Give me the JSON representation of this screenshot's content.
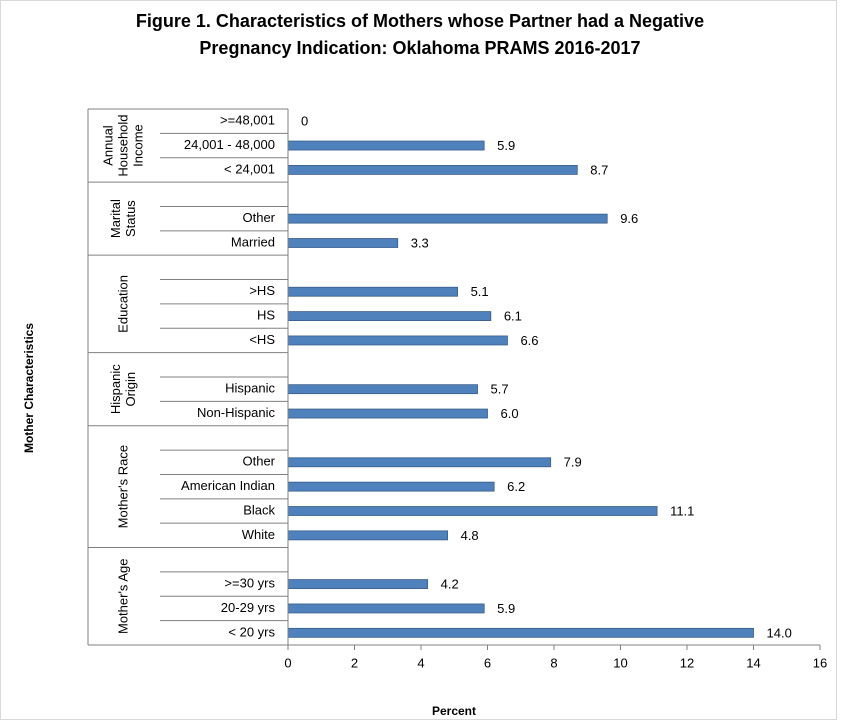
{
  "chart_data": {
    "type": "bar",
    "title": [
      "Figure 1. Characteristics of Mothers whose Partner had a Negative",
      "Pregnancy Indication: Oklahoma PRAMS 2016-2017"
    ],
    "x_label": "Percent",
    "y_label": "Mother Characteristics",
    "color": "#4f81bd",
    "xlim": [
      0,
      16
    ],
    "xticks": [
      0,
      2,
      4,
      6,
      8,
      10,
      12,
      14,
      16
    ],
    "groups": [
      {
        "label": [
          "Annual",
          "Household",
          "Income"
        ],
        "categories": [
          ">=48,001",
          "24,001 - 48,000",
          "< 24,001"
        ],
        "values": [
          0,
          5.9,
          8.7
        ],
        "value_labels": [
          "0",
          "5.9",
          "8.7"
        ]
      },
      {
        "label": [
          "Marital",
          "Status"
        ],
        "categories": [
          null,
          "Other",
          "Married"
        ],
        "values": [
          null,
          9.6,
          3.3
        ],
        "value_labels": [
          null,
          "9.6",
          "3.3"
        ]
      },
      {
        "label": [
          "Education"
        ],
        "categories": [
          null,
          ">HS",
          "HS",
          "<HS"
        ],
        "values": [
          null,
          5.1,
          6.1,
          6.6
        ],
        "value_labels": [
          null,
          "5.1",
          "6.1",
          "6.6"
        ]
      },
      {
        "label": [
          "Hispanic",
          "Origin"
        ],
        "categories": [
          null,
          "Hispanic",
          "Non-Hispanic"
        ],
        "values": [
          null,
          5.7,
          6.0
        ],
        "value_labels": [
          null,
          "5.7",
          "6.0"
        ]
      },
      {
        "label": [
          "Mother's Race"
        ],
        "categories": [
          null,
          "Other",
          "American Indian",
          "Black",
          "White"
        ],
        "values": [
          null,
          7.9,
          6.2,
          11.1,
          4.8
        ],
        "value_labels": [
          null,
          "7.9",
          "6.2",
          "11.1",
          "4.8"
        ]
      },
      {
        "label": [
          "Mother's Age"
        ],
        "categories": [
          null,
          ">=30 yrs",
          "20-29 yrs",
          "< 20 yrs"
        ],
        "values": [
          null,
          4.2,
          5.9,
          14.0
        ],
        "value_labels": [
          null,
          "4.2",
          "5.9",
          "14.0"
        ]
      }
    ]
  }
}
